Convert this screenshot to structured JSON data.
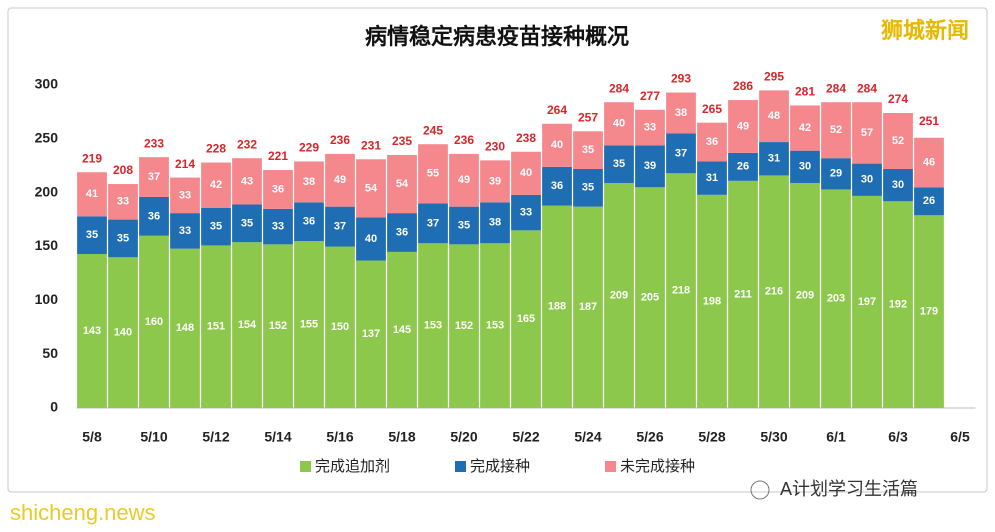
{
  "chart_data": {
    "type": "stacked_bar",
    "title": "病情稳定病患疫苗接种概况",
    "watermark": "狮城新闻",
    "footer": "A计划学习生活篇",
    "site_watermark": "shicheng.news",
    "categories": [
      "5/8",
      null,
      "5/10",
      null,
      "5/12",
      null,
      "5/14",
      null,
      "5/16",
      null,
      "5/18",
      null,
      "5/20",
      null,
      "5/22",
      null,
      "5/24",
      null,
      "5/26",
      null,
      "5/28",
      null,
      "5/30",
      null,
      "6/1",
      null,
      "6/3",
      null,
      "6/5"
    ],
    "series": [
      {
        "name": "完成追加剂",
        "color": "#8cc84b",
        "values": [
          143,
          140,
          160,
          148,
          151,
          154,
          152,
          155,
          150,
          137,
          145,
          153,
          152,
          153,
          165,
          188,
          187,
          209,
          205,
          218,
          198,
          211,
          216,
          209,
          203,
          197,
          192,
          179,
          null
        ]
      },
      {
        "name": "完成接种",
        "color": "#1f6db3",
        "values": [
          35,
          35,
          36,
          33,
          35,
          35,
          33,
          36,
          37,
          40,
          36,
          37,
          35,
          38,
          33,
          36,
          35,
          35,
          39,
          37,
          31,
          26,
          31,
          30,
          29,
          30,
          30,
          26,
          null
        ]
      },
      {
        "name": "未完成接种",
        "color": "#f4888d",
        "values": [
          41,
          33,
          37,
          33,
          42,
          43,
          36,
          38,
          49,
          54,
          54,
          55,
          49,
          39,
          40,
          40,
          35,
          40,
          33,
          38,
          36,
          49,
          48,
          42,
          52,
          57,
          52,
          46,
          null
        ]
      }
    ],
    "totals": [
      219,
      208,
      233,
      214,
      228,
      232,
      221,
      229,
      236,
      231,
      235,
      245,
      236,
      230,
      238,
      264,
      257,
      284,
      277,
      293,
      265,
      286,
      295,
      281,
      284,
      284,
      274,
      251,
      null
    ],
    "ylim": [
      0,
      300
    ],
    "yticks": [
      0,
      50,
      100,
      150,
      200,
      250,
      300
    ],
    "grid": false
  }
}
